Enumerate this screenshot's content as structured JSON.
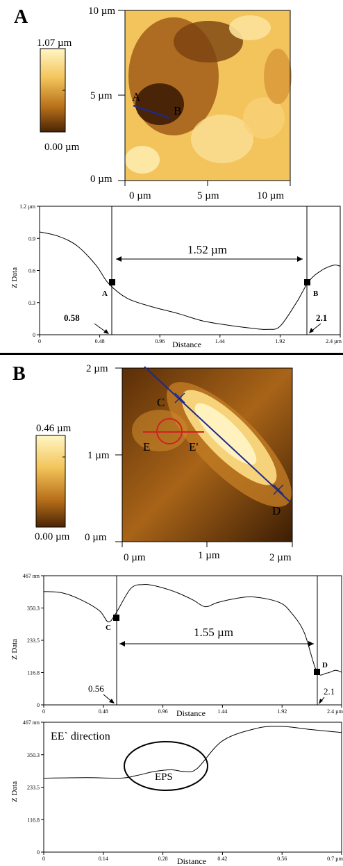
{
  "panel_a": {
    "label": "A",
    "colorbar": {
      "max": "1.07 µm",
      "min": "0.00 µm"
    },
    "image_axes": {
      "y_ticks": [
        "10 µm",
        "5 µm",
        "0 µm"
      ],
      "x_ticks": [
        "0 µm",
        "5 µm",
        "10 µm"
      ]
    },
    "markers": [
      "A",
      "B"
    ],
    "profile": {
      "ylabel": "Z Data",
      "xlabel": "Distance",
      "y_ticks": [
        "1.2 µm",
        "0.9",
        "0.6",
        "0.3",
        "0"
      ],
      "x_ticks": [
        "0",
        "0.48",
        "0.96",
        "1.44",
        "1.92",
        "2.4 µm"
      ],
      "width_annotation": "1.52 µm",
      "left_value": "0.58",
      "right_value": "2.1",
      "point_labels": [
        "A",
        "B"
      ]
    }
  },
  "panel_b": {
    "label": "B",
    "colorbar": {
      "max": "0.46 µm",
      "min": "0.00 µm"
    },
    "image_axes": {
      "y_ticks": [
        "2 µm",
        "1 µm",
        "0 µm"
      ],
      "x_ticks": [
        "0 µm",
        "1 µm",
        "2 µm"
      ]
    },
    "markers": [
      "C",
      "D",
      "E",
      "E'"
    ],
    "profile_cd": {
      "ylabel": "Z Data",
      "xlabel": "Distance",
      "y_ticks": [
        "467 nm",
        "350.3",
        "233.5",
        "116.8",
        "0"
      ],
      "x_ticks": [
        "0",
        "0.48",
        "0.96",
        "1.44",
        "1.92",
        "2.4 µm"
      ],
      "width_annotation": "1.55 µm",
      "left_value": "0.56",
      "right_value": "2.1",
      "point_labels": [
        "C",
        "D"
      ]
    },
    "profile_ee": {
      "title": "EE` direction",
      "ylabel": "Z Data",
      "xlabel": "Distance",
      "y_ticks": [
        "467 nm",
        "350.3",
        "233.5",
        "116.8",
        "0"
      ],
      "x_ticks": [
        "0",
        "0.14",
        "0.28",
        "0.42",
        "0.56",
        "0.7 µm"
      ],
      "annotation": "EPS"
    }
  },
  "chart_data": [
    {
      "type": "line",
      "title": "",
      "xlabel": "Distance",
      "ylabel": "Z Data",
      "xlim": [
        0,
        2.4
      ],
      "ylim": [
        0,
        1.2
      ],
      "series": [
        {
          "x": [
            0,
            0.15,
            0.3,
            0.45,
            0.55,
            0.7,
            0.9,
            1.1,
            1.3,
            1.5,
            1.7,
            1.82,
            1.92,
            2.05,
            2.15,
            2.25,
            2.35,
            2.4
          ],
          "y": [
            0.96,
            0.92,
            0.83,
            0.65,
            0.48,
            0.34,
            0.26,
            0.2,
            0.13,
            0.09,
            0.06,
            0.05,
            0.08,
            0.3,
            0.5,
            0.6,
            0.65,
            0.64
          ]
        }
      ],
      "annotations": [
        "A",
        "B",
        "1.52 µm",
        "0.58",
        "2.1"
      ]
    },
    {
      "type": "line",
      "title": "",
      "xlabel": "Distance",
      "ylabel": "Z Data",
      "xlim": [
        0,
        2.4
      ],
      "ylim": [
        0,
        467
      ],
      "series": [
        {
          "x": [
            0,
            0.15,
            0.3,
            0.45,
            0.52,
            0.58,
            0.7,
            0.8,
            0.9,
            1.05,
            1.2,
            1.3,
            1.4,
            1.55,
            1.7,
            1.9,
            2.0,
            2.1,
            2.2,
            2.28,
            2.35,
            2.4
          ],
          "y": [
            410,
            405,
            380,
            340,
            300,
            330,
            420,
            435,
            430,
            410,
            380,
            355,
            370,
            385,
            390,
            370,
            330,
            260,
            120,
            115,
            125,
            118
          ]
        }
      ],
      "annotations": [
        "C",
        "D",
        "1.55 µm",
        "0.56",
        "2.1"
      ]
    },
    {
      "type": "line",
      "title": "EE` direction",
      "xlabel": "Distance",
      "ylabel": "Z Data",
      "xlim": [
        0,
        0.7
      ],
      "ylim": [
        0,
        467
      ],
      "series": [
        {
          "x": [
            0,
            0.1,
            0.18,
            0.22,
            0.26,
            0.3,
            0.33,
            0.36,
            0.42,
            0.5,
            0.56,
            0.62,
            0.7
          ],
          "y": [
            266,
            268,
            266,
            276,
            290,
            296,
            290,
            300,
            400,
            445,
            452,
            442,
            430
          ]
        }
      ],
      "annotations": [
        "EPS"
      ]
    }
  ]
}
